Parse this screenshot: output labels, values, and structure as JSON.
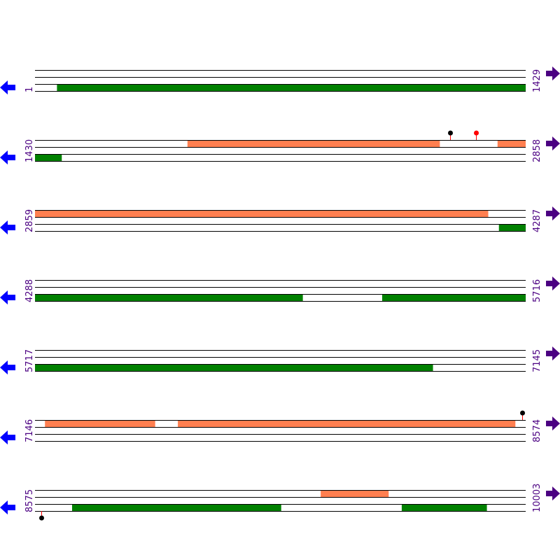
{
  "colors": {
    "cds_forward": "#FF7F50",
    "cds_reverse": "#008000",
    "line": "#000000",
    "label": "#4B0082",
    "left_arrow": "#0000FF",
    "right_arrow": "#4B0082",
    "lollipop_stem": "#FF0000",
    "lollipop_black": "#000000",
    "lollipop_red": "#FF0000"
  },
  "rows": [
    {
      "start": 1,
      "end": 1429,
      "start_label": "1",
      "end_label": "1429",
      "features": [
        {
          "track": 3,
          "from": 65,
          "to": 1429
        }
      ],
      "markers": []
    },
    {
      "start": 1430,
      "end": 2858,
      "start_label": "1430",
      "end_label": "2858",
      "features": [
        {
          "track": 1,
          "from": 1874,
          "to": 2608
        },
        {
          "track": 1,
          "from": 2777,
          "to": 2858
        },
        {
          "track": 3,
          "from": 1430,
          "to": 1507
        }
      ],
      "markers": [
        {
          "pos": 2639,
          "side": "top",
          "head": "black"
        },
        {
          "pos": 2714,
          "side": "top",
          "head": "red"
        }
      ]
    },
    {
      "start": 2859,
      "end": 4287,
      "start_label": "2859",
      "end_label": "4287",
      "features": [
        {
          "track": 1,
          "from": 2859,
          "to": 4178
        },
        {
          "track": 3,
          "from": 4210,
          "to": 4287
        }
      ],
      "markers": []
    },
    {
      "start": 4288,
      "end": 5716,
      "start_label": "4288",
      "end_label": "5716",
      "features": [
        {
          "track": 3,
          "from": 4288,
          "to": 5067
        },
        {
          "track": 3,
          "from": 5299,
          "to": 5716
        }
      ],
      "markers": []
    },
    {
      "start": 5717,
      "end": 7145,
      "start_label": "5717",
      "end_label": "7145",
      "features": [
        {
          "track": 3,
          "from": 5717,
          "to": 6875
        }
      ],
      "markers": []
    },
    {
      "start": 7146,
      "end": 8574,
      "start_label": "7146",
      "end_label": "8574",
      "features": [
        {
          "track": 1,
          "from": 7175,
          "to": 7495
        },
        {
          "track": 1,
          "from": 7562,
          "to": 8544
        }
      ],
      "markers": [
        {
          "pos": 8565,
          "side": "top",
          "head": "black"
        }
      ]
    },
    {
      "start": 8575,
      "end": 10003,
      "start_label": "8575",
      "end_label": "10003",
      "features": [
        {
          "track": 1,
          "from": 9407,
          "to": 9604
        },
        {
          "track": 3,
          "from": 8683,
          "to": 9291
        },
        {
          "track": 3,
          "from": 9643,
          "to": 9890
        }
      ],
      "markers": [
        {
          "pos": 8593,
          "side": "bottom",
          "head": "black"
        }
      ]
    }
  ]
}
